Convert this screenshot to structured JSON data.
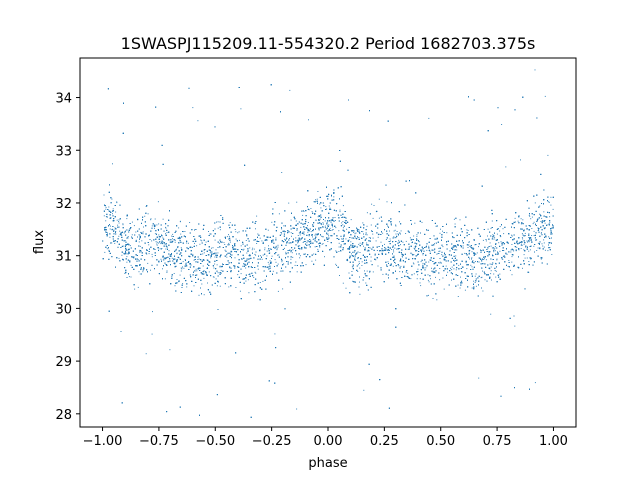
{
  "chart_data": {
    "type": "scatter",
    "title": "1SWASPJ115209.11-554320.2 Period 1682703.375s",
    "xlabel": "phase",
    "ylabel": "flux",
    "xlim": [
      -1.1,
      1.1
    ],
    "ylim": [
      27.75,
      34.75
    ],
    "xticks": [
      -1.0,
      -0.75,
      -0.5,
      -0.25,
      0.0,
      0.25,
      0.5,
      0.75,
      1.0
    ],
    "xtick_labels": [
      "−1.00",
      "−0.75",
      "−0.50",
      "−0.25",
      "0.00",
      "0.25",
      "0.50",
      "0.75",
      "1.00"
    ],
    "yticks": [
      28,
      29,
      30,
      31,
      32,
      33,
      34
    ],
    "ytick_labels": [
      "28",
      "29",
      "30",
      "31",
      "32",
      "33",
      "34"
    ],
    "grid": false,
    "legend": "none",
    "marker_color": "#1f77b4",
    "series": [
      {
        "points_note_x": "phase",
        "x": [
          -1.0,
          -0.95,
          -0.9,
          -0.85,
          -0.8,
          -0.75,
          -0.7,
          -0.65,
          -0.6,
          -0.55,
          -0.5,
          -0.45,
          -0.4,
          -0.35,
          -0.3,
          -0.25,
          -0.2,
          -0.15,
          -0.1,
          -0.05,
          0.0,
          0.05,
          0.1,
          0.15,
          0.2,
          0.25,
          0.3,
          0.35,
          0.4,
          0.45,
          0.5,
          0.55,
          0.6,
          0.65,
          0.7,
          0.75,
          0.8,
          0.85,
          0.9,
          0.95,
          1.0
        ],
        "y": [
          31.6,
          31.5,
          31.2,
          31.0,
          31.3,
          31.2,
          31.1,
          31.0,
          31.0,
          30.9,
          31.0,
          31.1,
          31.0,
          30.9,
          31.0,
          31.1,
          31.2,
          31.3,
          31.4,
          31.5,
          31.6,
          31.5,
          31.2,
          31.0,
          31.3,
          31.2,
          31.1,
          31.0,
          31.0,
          30.9,
          31.0,
          31.1,
          31.0,
          30.9,
          31.0,
          31.1,
          31.2,
          31.3,
          31.4,
          31.5,
          31.6
        ]
      }
    ]
  }
}
